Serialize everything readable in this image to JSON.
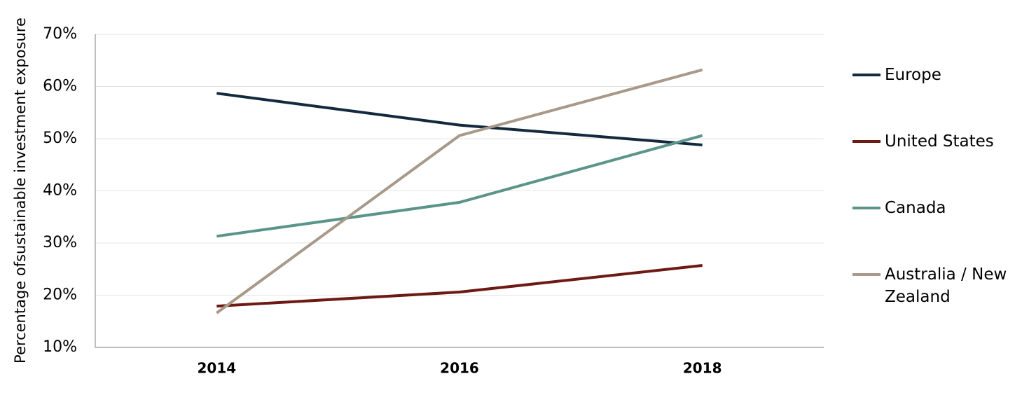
{
  "chart_data": {
    "type": "line",
    "y_label": "Percentage ofsustainable investment exposure",
    "categories": [
      "2014",
      "2016",
      "2018"
    ],
    "series": [
      {
        "name": "Europe",
        "color": "#13293d",
        "values": [
          58.7,
          52.6,
          48.8
        ]
      },
      {
        "name": "United States",
        "color": "#6e1a14",
        "values": [
          17.9,
          20.6,
          25.7
        ]
      },
      {
        "name": "Canada",
        "color": "#5b9488",
        "values": [
          31.3,
          37.8,
          50.6
        ]
      },
      {
        "name": "Australia / New Zealand",
        "color": "#a8998a",
        "values": [
          16.6,
          50.6,
          63.2
        ]
      }
    ],
    "ylim": [
      10,
      70
    ],
    "yticks": [
      {
        "value": 10,
        "label": "10%"
      },
      {
        "value": 20,
        "label": "20%"
      },
      {
        "value": 30,
        "label": "30%"
      },
      {
        "value": 40,
        "label": "40%"
      },
      {
        "value": 50,
        "label": "50%"
      },
      {
        "value": 60,
        "label": "60%"
      },
      {
        "value": 70,
        "label": "70%"
      }
    ],
    "grid": true,
    "legend": "right"
  }
}
